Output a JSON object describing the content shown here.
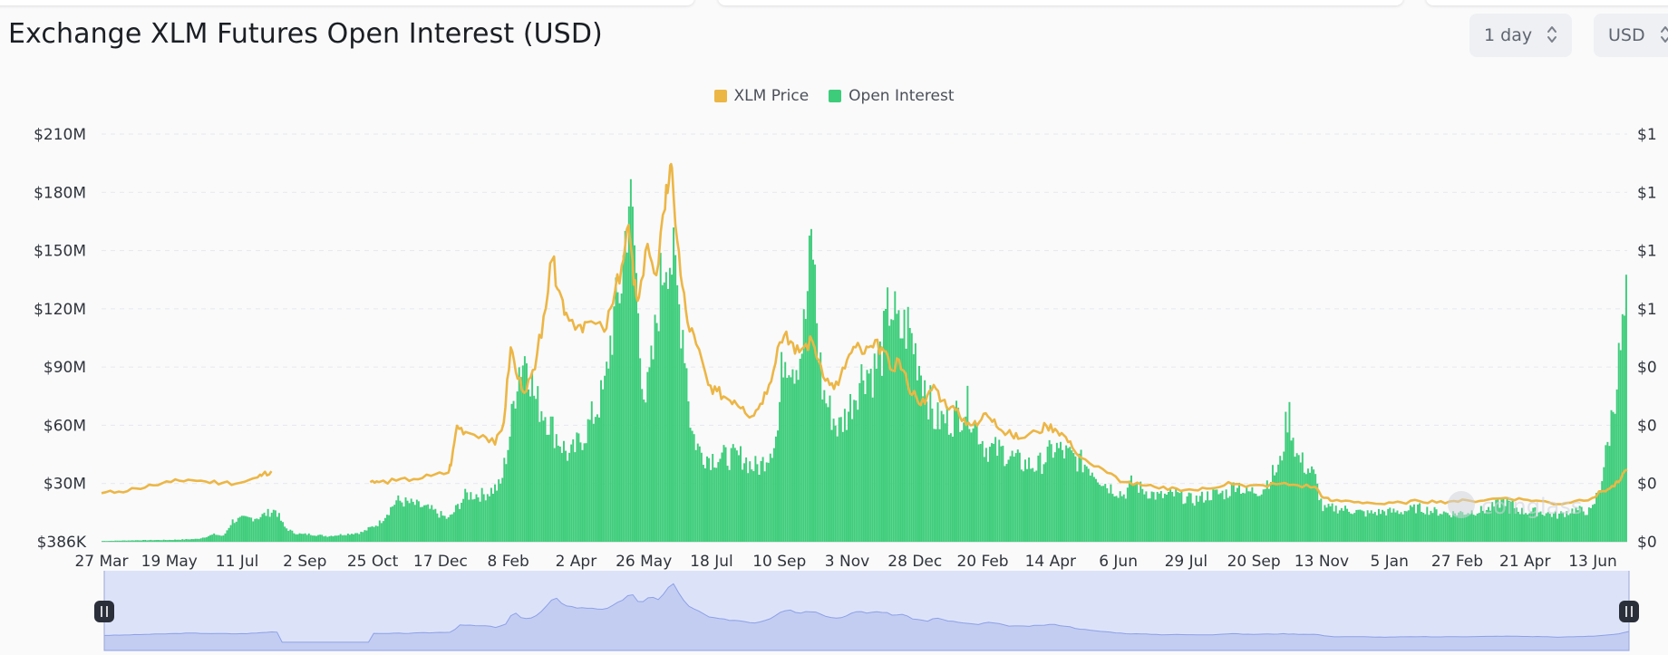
{
  "title": "Exchange XLM Futures Open Interest (USD)",
  "controls": {
    "interval": "1 day",
    "currency": "USD"
  },
  "icons": {
    "interval_chevron": "chevron-up-down-icon",
    "currency_chevron": "chevron-up-down-icon",
    "brush_handle": "pause-handle-icon"
  },
  "colors": {
    "price": "#ecb645",
    "open_interest": "#3dcd7a",
    "navigator_fill": "#d6def8",
    "navigator_line": "#8ea0e6"
  },
  "chart_data": {
    "type": "bar",
    "title": "Exchange XLM Futures Open Interest (USD)",
    "legend": [
      "XLM Price",
      "Open Interest"
    ],
    "legend_position": "top-center",
    "grid": true,
    "x_tick_labels": [
      "27 Mar",
      "19 May",
      "11 Jul",
      "2 Sep",
      "25 Oct",
      "17 Dec",
      "8 Feb",
      "2 Apr",
      "26 May",
      "18 Jul",
      "10 Sep",
      "3 Nov",
      "28 Dec",
      "20 Feb",
      "14 Apr",
      "6 Jun",
      "29 Jul",
      "20 Sep",
      "13 Nov",
      "5 Jan",
      "27 Feb",
      "21 Apr",
      "13 Jun"
    ],
    "y_left_tick_labels": [
      "$386K",
      "$30M",
      "$60M",
      "$90M",
      "$120M",
      "$150M",
      "$180M",
      "$210M"
    ],
    "y_left_range": [
      0,
      210
    ],
    "y_right_tick_labels": [
      "$0",
      "$0",
      "$0",
      "$0",
      "$1",
      "$1",
      "$1",
      "$1"
    ],
    "series": [
      {
        "name": "Open Interest",
        "unit": "USD millions",
        "kind": "bar",
        "points": [
          [
            0,
            0.4
          ],
          [
            2,
            0.8
          ],
          [
            4,
            1
          ],
          [
            5.5,
            1.5
          ],
          [
            6.5,
            4
          ],
          [
            7,
            3
          ],
          [
            7.5,
            11
          ],
          [
            8,
            12
          ],
          [
            9,
            13
          ],
          [
            10,
            17
          ],
          [
            10.5,
            8
          ],
          [
            11,
            5
          ],
          [
            11.5,
            4
          ],
          [
            12,
            4
          ],
          [
            13,
            3
          ],
          [
            14,
            4
          ],
          [
            15,
            5
          ],
          [
            16,
            10
          ],
          [
            17,
            22
          ],
          [
            18,
            20
          ],
          [
            19,
            17
          ],
          [
            20,
            12
          ],
          [
            21,
            25
          ],
          [
            22,
            25
          ],
          [
            23,
            30
          ],
          [
            23.5,
            55
          ],
          [
            24,
            92
          ],
          [
            24.5,
            100
          ],
          [
            25,
            75
          ],
          [
            25.5,
            70
          ],
          [
            26,
            60
          ],
          [
            26.5,
            52
          ],
          [
            27,
            45
          ],
          [
            28,
            60
          ],
          [
            29,
            80
          ],
          [
            29.3,
            105
          ],
          [
            29.6,
            120
          ],
          [
            30,
            140
          ],
          [
            30.4,
            185
          ],
          [
            30.8,
            150
          ],
          [
            31,
            105
          ],
          [
            31.4,
            75
          ],
          [
            31.8,
            98
          ],
          [
            32.2,
            135
          ],
          [
            32.6,
            158
          ],
          [
            33,
            145
          ],
          [
            33.3,
            125
          ],
          [
            33.6,
            110
          ],
          [
            34,
            60
          ],
          [
            34.5,
            48
          ],
          [
            35,
            45
          ],
          [
            36,
            45
          ],
          [
            37,
            45
          ],
          [
            37.5,
            40
          ],
          [
            38,
            40
          ],
          [
            38.5,
            48
          ],
          [
            39,
            58
          ],
          [
            39.3,
            100
          ],
          [
            39.6,
            100
          ],
          [
            40,
            95
          ],
          [
            40.3,
            100
          ],
          [
            40.6,
            118
          ],
          [
            41,
            165
          ],
          [
            41.3,
            110
          ],
          [
            41.6,
            80
          ],
          [
            42,
            70
          ],
          [
            42.5,
            60
          ],
          [
            43,
            68
          ],
          [
            43.5,
            80
          ],
          [
            44,
            92
          ],
          [
            44.5,
            90
          ],
          [
            45,
            100
          ],
          [
            45.5,
            128
          ],
          [
            46,
            110
          ],
          [
            46.5,
            115
          ],
          [
            47,
            100
          ],
          [
            47.5,
            85
          ],
          [
            48,
            65
          ],
          [
            49,
            65
          ],
          [
            50,
            72
          ],
          [
            51,
            50
          ],
          [
            52,
            48
          ],
          [
            53,
            42
          ],
          [
            54,
            40
          ],
          [
            55,
            50
          ],
          [
            56,
            45
          ],
          [
            57,
            40
          ],
          [
            58,
            30
          ],
          [
            59,
            25
          ],
          [
            59.5,
            32
          ],
          [
            60,
            28
          ],
          [
            61,
            24
          ],
          [
            62,
            25
          ],
          [
            63,
            22
          ],
          [
            64,
            25
          ],
          [
            65,
            26
          ],
          [
            65.5,
            32
          ],
          [
            66,
            26
          ],
          [
            67,
            28
          ],
          [
            67.5,
            35
          ],
          [
            68,
            40
          ],
          [
            68.5,
            70
          ],
          [
            69,
            45
          ],
          [
            69.5,
            40
          ],
          [
            70,
            35
          ],
          [
            70.5,
            17
          ],
          [
            71,
            18
          ],
          [
            72,
            17
          ],
          [
            73,
            15
          ],
          [
            74,
            16
          ],
          [
            75,
            16
          ],
          [
            76,
            18
          ],
          [
            77,
            16
          ],
          [
            78,
            15
          ],
          [
            79,
            16
          ],
          [
            80,
            17
          ],
          [
            81,
            22
          ],
          [
            82,
            16
          ],
          [
            83,
            16
          ],
          [
            84,
            14
          ],
          [
            85,
            17
          ],
          [
            86,
            16
          ],
          [
            86.5,
            30
          ],
          [
            87,
            55
          ],
          [
            87.5,
            90
          ],
          [
            88,
            125
          ]
        ]
      },
      {
        "name": "XLM Price",
        "kind": "line",
        "points": [
          [
            0,
            0.155
          ],
          [
            1,
            0.16
          ],
          [
            2,
            0.17
          ],
          [
            3,
            0.18
          ],
          [
            4,
            0.19
          ],
          [
            5,
            0.198
          ],
          [
            6,
            0.192
          ],
          [
            7,
            0.188
          ],
          [
            8,
            0.188
          ],
          [
            9,
            0.205
          ],
          [
            9.3,
            0.215
          ],
          [
            9.8,
            0.225
          ],
          [
            15.5,
            0.19
          ],
          [
            16,
            0.19
          ],
          [
            17,
            0.195
          ],
          [
            18,
            0.2
          ],
          [
            19,
            0.21
          ],
          [
            20,
            0.22
          ],
          [
            20.2,
            0.26
          ],
          [
            20.5,
            0.37
          ],
          [
            21,
            0.35
          ],
          [
            22,
            0.34
          ],
          [
            22.7,
            0.31
          ],
          [
            23.2,
            0.38
          ],
          [
            23.6,
            0.62
          ],
          [
            24,
            0.52
          ],
          [
            24.5,
            0.48
          ],
          [
            25,
            0.55
          ],
          [
            25.5,
            0.72
          ],
          [
            26,
            0.9
          ],
          [
            26.4,
            0.8
          ],
          [
            26.8,
            0.73
          ],
          [
            27.5,
            0.69
          ],
          [
            28,
            0.7
          ],
          [
            29,
            0.67
          ],
          [
            29.5,
            0.76
          ],
          [
            30,
            0.88
          ],
          [
            30.4,
            1.01
          ],
          [
            30.7,
            0.82
          ],
          [
            31,
            0.78
          ],
          [
            31.5,
            0.95
          ],
          [
            32,
            0.85
          ],
          [
            32.5,
            1.06
          ],
          [
            32.8,
            1.2
          ],
          [
            33,
            1.1
          ],
          [
            33.4,
            0.85
          ],
          [
            33.8,
            0.7
          ],
          [
            34.3,
            0.63
          ],
          [
            35,
            0.5
          ],
          [
            35.5,
            0.48
          ],
          [
            36,
            0.46
          ],
          [
            36.5,
            0.45
          ],
          [
            37,
            0.43
          ],
          [
            37.5,
            0.4
          ],
          [
            38,
            0.44
          ],
          [
            38.5,
            0.5
          ],
          [
            39,
            0.62
          ],
          [
            39.5,
            0.67
          ],
          [
            40,
            0.6
          ],
          [
            40.5,
            0.62
          ],
          [
            41,
            0.64
          ],
          [
            41.5,
            0.56
          ],
          [
            42,
            0.5
          ],
          [
            42.5,
            0.5
          ],
          [
            43,
            0.58
          ],
          [
            43.5,
            0.62
          ],
          [
            44,
            0.6
          ],
          [
            44.5,
            0.62
          ],
          [
            45,
            0.62
          ],
          [
            45.5,
            0.55
          ],
          [
            46,
            0.58
          ],
          [
            46.5,
            0.5
          ],
          [
            47,
            0.46
          ],
          [
            47.5,
            0.44
          ],
          [
            48,
            0.5
          ],
          [
            48.5,
            0.45
          ],
          [
            49,
            0.43
          ],
          [
            49.5,
            0.4
          ],
          [
            50,
            0.38
          ],
          [
            50.5,
            0.37
          ],
          [
            51,
            0.41
          ],
          [
            51.5,
            0.39
          ],
          [
            52,
            0.35
          ],
          [
            52.5,
            0.34
          ],
          [
            53,
            0.33
          ],
          [
            54,
            0.35
          ],
          [
            54.5,
            0.37
          ],
          [
            55,
            0.36
          ],
          [
            55.5,
            0.34
          ],
          [
            56,
            0.3
          ],
          [
            57,
            0.25
          ],
          [
            58,
            0.22
          ],
          [
            59,
            0.19
          ],
          [
            60,
            0.18
          ],
          [
            61,
            0.17
          ],
          [
            62,
            0.17
          ],
          [
            63,
            0.165
          ],
          [
            64,
            0.17
          ],
          [
            65,
            0.19
          ],
          [
            66,
            0.175
          ],
          [
            67,
            0.18
          ],
          [
            68,
            0.185
          ],
          [
            69,
            0.18
          ],
          [
            70,
            0.175
          ],
          [
            70.5,
            0.14
          ],
          [
            71,
            0.13
          ],
          [
            72,
            0.13
          ],
          [
            73,
            0.125
          ],
          [
            74,
            0.12
          ],
          [
            75,
            0.125
          ],
          [
            76,
            0.13
          ],
          [
            77,
            0.125
          ],
          [
            78,
            0.13
          ],
          [
            79,
            0.13
          ],
          [
            80,
            0.135
          ],
          [
            81,
            0.14
          ],
          [
            82,
            0.135
          ],
          [
            83,
            0.13
          ],
          [
            84,
            0.12
          ],
          [
            85,
            0.13
          ],
          [
            86,
            0.14
          ],
          [
            86.5,
            0.16
          ],
          [
            87,
            0.17
          ],
          [
            87.5,
            0.19
          ],
          [
            88,
            0.23
          ]
        ]
      }
    ]
  },
  "navigator": {
    "range_start": 0,
    "range_end": 1
  },
  "watermark": "coinglass"
}
